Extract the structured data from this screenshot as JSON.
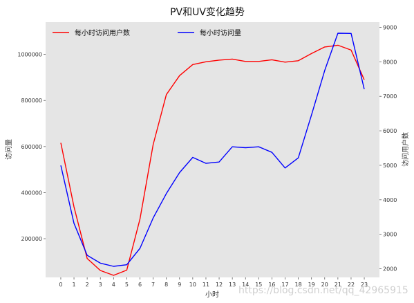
{
  "chart_data": {
    "type": "line",
    "title": "PV和UV变化趋势",
    "xlabel": "小时",
    "ylabel_left": "访问量",
    "ylabel_right": "访问用户数",
    "x": [
      0,
      1,
      2,
      3,
      4,
      5,
      6,
      7,
      8,
      9,
      10,
      11,
      12,
      13,
      14,
      15,
      16,
      17,
      18,
      19,
      20,
      21,
      22,
      23
    ],
    "xlim": [
      -1.15,
      24.15
    ],
    "ylim_left": [
      32000,
      1140000
    ],
    "ylim_right": [
      1750,
      9150
    ],
    "yticks_left": [
      200000,
      400000,
      600000,
      800000,
      1000000
    ],
    "yticks_right": [
      2000,
      3000,
      4000,
      5000,
      6000,
      7000,
      8000,
      9000
    ],
    "grid": false,
    "series": [
      {
        "name": "每小时访问用户数",
        "axis": "right",
        "color": "#ff0000",
        "values": [
          5650,
          3800,
          2300,
          1950,
          1810,
          1960,
          3440,
          5600,
          7050,
          7600,
          7920,
          8000,
          8050,
          8080,
          8010,
          8010,
          8060,
          7990,
          8030,
          8240,
          8430,
          8480,
          8340,
          7480
        ]
      },
      {
        "name": "每小时访问量",
        "axis": "left",
        "color": "#0000ff",
        "values": [
          518000,
          267000,
          128000,
          94000,
          80000,
          87000,
          158000,
          290000,
          396000,
          487000,
          553000,
          527000,
          533000,
          599000,
          595000,
          599000,
          575000,
          507000,
          551000,
          737000,
          930000,
          1092000,
          1091000,
          849000
        ]
      }
    ],
    "legends": [
      {
        "label": "每小时访问用户数",
        "color": "#ff0000",
        "placement": "upper-left"
      },
      {
        "label": "每小时访问量",
        "color": "#0000ff",
        "placement": "upper-center"
      }
    ]
  },
  "watermark": "https://blog.csdn.net/qq_42965915"
}
